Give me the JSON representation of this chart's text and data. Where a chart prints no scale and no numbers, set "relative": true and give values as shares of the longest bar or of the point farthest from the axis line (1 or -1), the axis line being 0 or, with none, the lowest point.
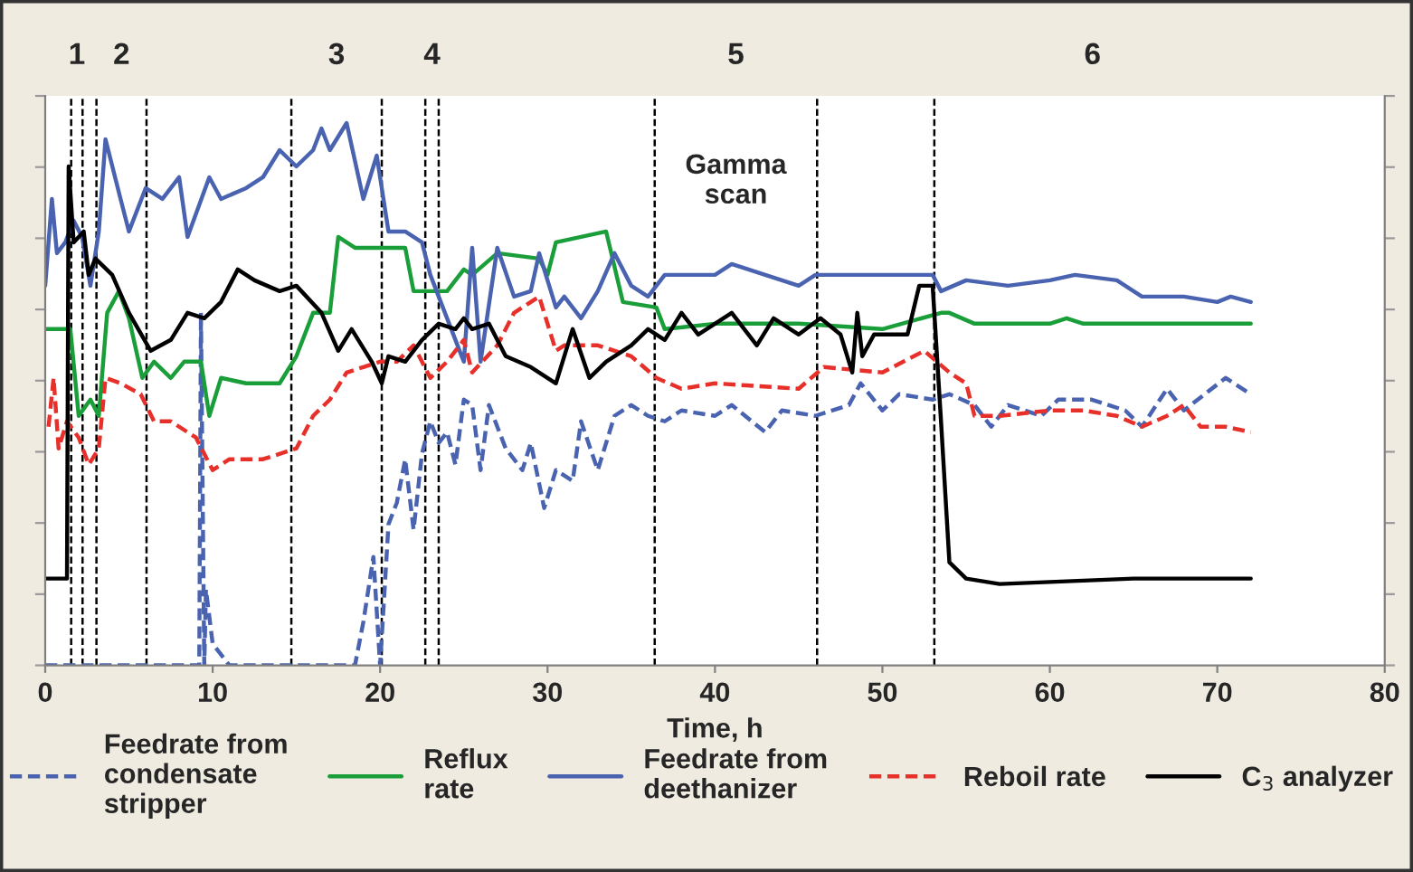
{
  "chart_data": {
    "type": "line",
    "relative": true,
    "xlabel": "Time, h",
    "xlim": [
      0,
      80
    ],
    "xticks": [
      0,
      10,
      20,
      30,
      40,
      50,
      60,
      70,
      80
    ],
    "grid": false,
    "legend": "bottom",
    "marker": "none",
    "series": [
      {
        "name": "Feedrate from\ncondensate\nstripper",
        "color": "#4a63b0",
        "line_style": "dashed",
        "x": [
          0,
          9.2,
          9.3,
          9.5,
          9.6,
          10,
          11,
          18.5,
          19,
          19.6,
          20,
          20.5,
          21,
          21.5,
          22,
          22.5,
          23,
          23.5,
          24,
          24.5,
          25,
          25.5,
          26,
          26.5,
          27.5,
          28.5,
          29,
          29.8,
          30.5,
          31.5,
          32,
          33,
          34,
          35,
          36,
          37,
          38,
          40,
          41,
          43,
          44,
          46,
          48,
          48.7,
          50,
          51,
          53,
          54,
          55.5,
          56.5,
          57.5,
          59.5,
          60.5,
          62.5,
          64.5,
          65.5,
          67,
          68,
          70.5,
          72
        ],
        "values": [
          0,
          0,
          0.65,
          0,
          0.14,
          0.04,
          0,
          0,
          0.08,
          0.2,
          0,
          0.26,
          0.3,
          0.38,
          0.25,
          0.39,
          0.45,
          0.41,
          0.43,
          0.37,
          0.49,
          0.48,
          0.36,
          0.48,
          0.4,
          0.36,
          0.41,
          0.29,
          0.36,
          0.34,
          0.45,
          0.36,
          0.46,
          0.48,
          0.46,
          0.45,
          0.47,
          0.46,
          0.48,
          0.43,
          0.47,
          0.46,
          0.48,
          0.52,
          0.47,
          0.5,
          0.49,
          0.5,
          0.48,
          0.44,
          0.48,
          0.46,
          0.49,
          0.49,
          0.47,
          0.44,
          0.51,
          0.47,
          0.53,
          0.5
        ]
      },
      {
        "name": "Reflux\nrate",
        "color": "#1a9e3a",
        "line_style": "solid",
        "x": [
          0,
          1.5,
          2,
          2.7,
          3.2,
          3.7,
          4.4,
          5,
          5.8,
          6.5,
          7.5,
          8.3,
          9.3,
          9.8,
          10.5,
          12,
          14,
          15,
          16,
          17,
          17.5,
          18,
          18.5,
          20,
          21.5,
          22,
          24,
          25,
          25.5,
          27,
          29.5,
          30,
          30.5,
          33.5,
          34.5,
          36.5,
          37,
          40,
          45,
          50,
          53.5,
          54,
          55.5,
          60,
          61,
          62,
          65,
          72
        ],
        "values": [
          0.62,
          0.62,
          0.46,
          0.49,
          0.46,
          0.65,
          0.69,
          0.64,
          0.53,
          0.56,
          0.53,
          0.56,
          0.56,
          0.46,
          0.53,
          0.52,
          0.52,
          0.57,
          0.65,
          0.65,
          0.79,
          0.78,
          0.77,
          0.77,
          0.77,
          0.69,
          0.69,
          0.73,
          0.72,
          0.76,
          0.75,
          0.72,
          0.78,
          0.8,
          0.67,
          0.66,
          0.62,
          0.63,
          0.63,
          0.62,
          0.65,
          0.65,
          0.63,
          0.63,
          0.64,
          0.63,
          0.63,
          0.63
        ]
      },
      {
        "name": "Feedrate from\ndeethanizer",
        "color": "#4a63b0",
        "line_style": "solid",
        "x": [
          0,
          0.4,
          0.7,
          1.2,
          1.7,
          2.2,
          2.7,
          3.2,
          3.6,
          4.5,
          5,
          6,
          7,
          8,
          8.5,
          9.8,
          10.5,
          12,
          13,
          14,
          15,
          16,
          16.5,
          17,
          18,
          19,
          19.8,
          20.5,
          21.5,
          22.5,
          23,
          24,
          25,
          25.5,
          26,
          27,
          28,
          29,
          29.5,
          30.5,
          31,
          32,
          33,
          34,
          35,
          36,
          37,
          40,
          41,
          43,
          45,
          46,
          50,
          53,
          53.5,
          55,
          57.5,
          60,
          61.5,
          64,
          65.5,
          68,
          70,
          70.8,
          72
        ],
        "values": [
          0.7,
          0.86,
          0.76,
          0.78,
          0.82,
          0.79,
          0.7,
          0.8,
          0.97,
          0.86,
          0.8,
          0.88,
          0.86,
          0.9,
          0.79,
          0.9,
          0.86,
          0.88,
          0.9,
          0.95,
          0.92,
          0.95,
          0.99,
          0.95,
          1.0,
          0.86,
          0.94,
          0.8,
          0.8,
          0.78,
          0.72,
          0.64,
          0.56,
          0.77,
          0.56,
          0.77,
          0.68,
          0.69,
          0.76,
          0.66,
          0.68,
          0.64,
          0.69,
          0.76,
          0.7,
          0.68,
          0.72,
          0.72,
          0.74,
          0.72,
          0.7,
          0.72,
          0.72,
          0.72,
          0.69,
          0.71,
          0.7,
          0.71,
          0.72,
          0.71,
          0.68,
          0.68,
          0.67,
          0.68,
          0.67
        ]
      },
      {
        "name": "Reboil rate",
        "color": "#e8302a",
        "line_style": "dashed",
        "x": [
          0.2,
          0.5,
          0.8,
          1.3,
          2,
          2.6,
          3.2,
          3.6,
          4.5,
          5.7,
          6.5,
          7.5,
          9,
          10,
          11,
          13,
          15,
          16,
          17,
          18,
          19,
          20,
          21,
          22,
          23,
          24,
          25,
          25.5,
          27,
          28,
          29.5,
          30.5,
          31,
          33,
          35,
          36.5,
          38,
          40,
          45,
          46.5,
          50,
          52.5,
          54,
          55,
          55.5,
          57,
          60,
          62,
          64,
          65.5,
          67,
          68,
          69,
          70.5,
          72
        ],
        "values": [
          0.44,
          0.53,
          0.4,
          0.45,
          0.42,
          0.37,
          0.4,
          0.53,
          0.52,
          0.5,
          0.45,
          0.45,
          0.42,
          0.36,
          0.38,
          0.38,
          0.4,
          0.46,
          0.49,
          0.54,
          0.55,
          0.56,
          0.56,
          0.59,
          0.53,
          0.56,
          0.6,
          0.54,
          0.59,
          0.65,
          0.68,
          0.58,
          0.59,
          0.59,
          0.57,
          0.53,
          0.51,
          0.52,
          0.51,
          0.55,
          0.54,
          0.58,
          0.54,
          0.52,
          0.46,
          0.46,
          0.47,
          0.47,
          0.46,
          0.44,
          0.46,
          0.48,
          0.44,
          0.44,
          0.43
        ]
      },
      {
        "name": "C$_{3}$ analyzer",
        "color": "#000000",
        "line_style": "solid",
        "x": [
          0,
          1.3,
          1.4,
          1.7,
          2.3,
          2.6,
          3,
          4,
          5,
          6.3,
          7.5,
          8.5,
          9.5,
          10.5,
          11.5,
          12.5,
          14,
          15,
          16.5,
          17.5,
          18.3,
          19.5,
          20.1,
          20.5,
          21.5,
          22.5,
          23.5,
          24.5,
          25,
          25.5,
          26.5,
          27.5,
          29,
          30.5,
          31.5,
          32.5,
          33.5,
          35,
          36,
          37,
          38,
          39,
          40,
          41,
          42.5,
          43.5,
          45,
          46.3,
          47.5,
          48.2,
          48.5,
          48.8,
          49.5,
          51.5,
          52.2,
          53,
          53.5,
          54,
          55,
          57,
          65,
          72
        ],
        "values": [
          0.16,
          0.16,
          0.92,
          0.78,
          0.8,
          0.72,
          0.75,
          0.72,
          0.65,
          0.58,
          0.6,
          0.65,
          0.64,
          0.67,
          0.73,
          0.71,
          0.69,
          0.7,
          0.65,
          0.58,
          0.62,
          0.56,
          0.52,
          0.57,
          0.56,
          0.6,
          0.63,
          0.62,
          0.64,
          0.62,
          0.63,
          0.57,
          0.55,
          0.52,
          0.62,
          0.53,
          0.56,
          0.59,
          0.62,
          0.6,
          0.65,
          0.61,
          0.63,
          0.65,
          0.59,
          0.64,
          0.61,
          0.64,
          0.61,
          0.54,
          0.65,
          0.57,
          0.61,
          0.61,
          0.7,
          0.7,
          0.45,
          0.19,
          0.16,
          0.15,
          0.16,
          0.16
        ]
      }
    ],
    "ref_lines": [
      {
        "axis": "x",
        "value": 1.55,
        "color": "#000000",
        "line_style": "dashed"
      },
      {
        "axis": "x",
        "value": 2.23,
        "color": "#000000",
        "line_style": "dashed"
      },
      {
        "axis": "x",
        "value": 3.06,
        "color": "#000000",
        "line_style": "dashed"
      },
      {
        "axis": "x",
        "value": 6.05,
        "color": "#000000",
        "line_style": "dashed"
      },
      {
        "axis": "x",
        "value": 14.7,
        "color": "#000000",
        "line_style": "dashed"
      },
      {
        "axis": "x",
        "value": 20.1,
        "color": "#000000",
        "line_style": "dashed"
      },
      {
        "axis": "x",
        "value": 22.7,
        "color": "#000000",
        "line_style": "dashed"
      },
      {
        "axis": "x",
        "value": 23.5,
        "color": "#000000",
        "line_style": "dashed"
      },
      {
        "axis": "x",
        "value": 36.4,
        "color": "#000000",
        "line_style": "dashed"
      },
      {
        "axis": "x",
        "value": 46.1,
        "color": "#000000",
        "line_style": "dashed"
      },
      {
        "axis": "x",
        "value": 53.1,
        "color": "#000000",
        "line_style": "dashed"
      }
    ],
    "annotations": [
      "1",
      "2",
      "3",
      "4",
      "5",
      "6",
      "Gamma\nscan"
    ]
  }
}
